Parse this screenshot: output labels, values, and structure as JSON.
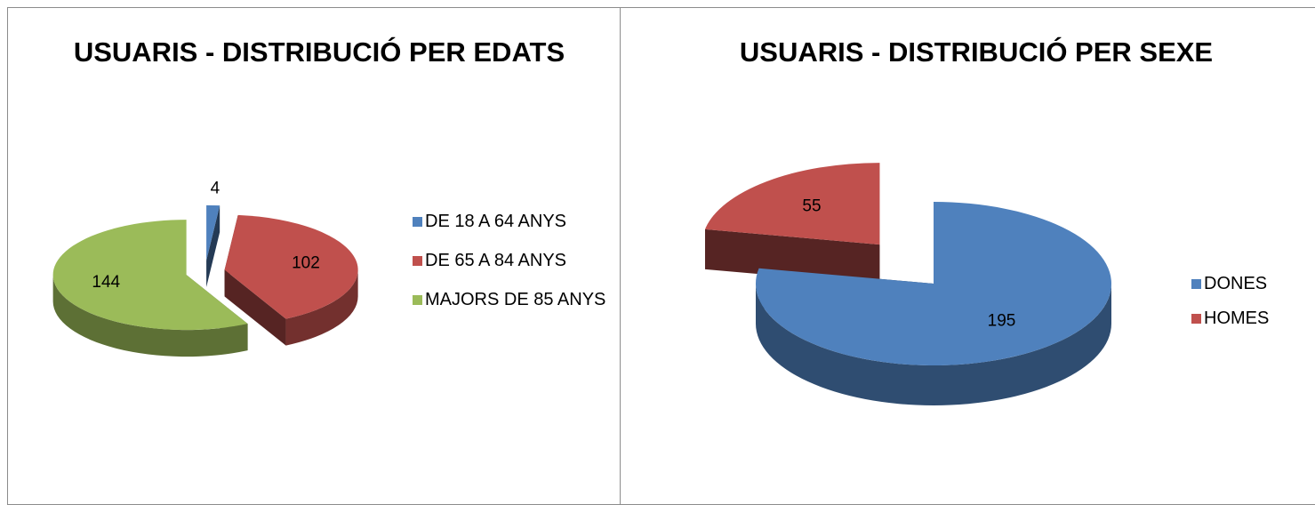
{
  "chart_data": [
    {
      "type": "pie3d",
      "title": "USUARIS - DISTRIBUCIÓ PER EDATS",
      "categories": [
        "DE 18 A 64 ANYS",
        "DE 65 A 84 ANYS",
        "MAJORS DE 85 ANYS"
      ],
      "values": [
        4,
        102,
        144
      ],
      "colors": [
        "#4f81bd",
        "#c0504d",
        "#9bbb59"
      ],
      "legend": "right"
    },
    {
      "type": "pie3d",
      "title": "USUARIS - DISTRIBUCIÓ PER SEXE",
      "categories": [
        "DONES",
        "HOMES"
      ],
      "values": [
        195,
        55
      ],
      "colors": [
        "#4f81bd",
        "#c0504d"
      ],
      "legend": "right"
    }
  ]
}
